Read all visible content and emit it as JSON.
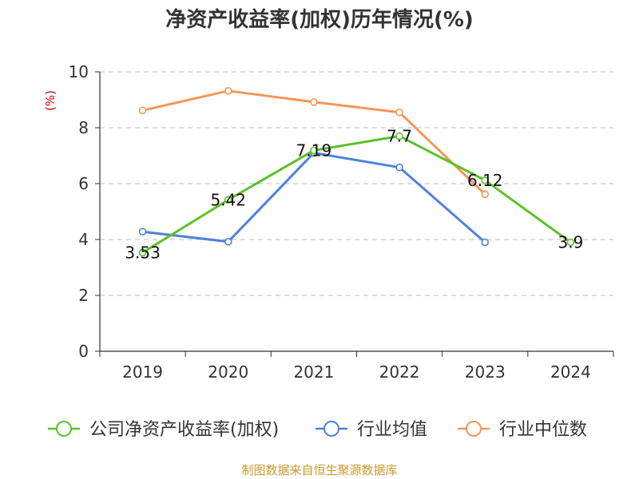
{
  "chart_data": {
    "type": "line",
    "title": "净资产收益率(加权)历年情况(%)",
    "ylabel": "(%)",
    "xlabel": "",
    "categories": [
      "2019",
      "2020",
      "2021",
      "2022",
      "2023",
      "2024"
    ],
    "ylim": [
      0,
      10
    ],
    "yticks": [
      "0",
      "2",
      "4",
      "6",
      "8",
      "10"
    ],
    "grid": true,
    "legend_position": "bottom",
    "series": [
      {
        "name": "公司净资产收益率(加权)",
        "color": "#5cc12a",
        "values": [
          3.53,
          5.42,
          7.19,
          7.7,
          6.12,
          3.9
        ],
        "labels": [
          "3.53",
          "5.42",
          "7.19",
          "7.7",
          "6.12",
          "3.9"
        ]
      },
      {
        "name": "行业均值",
        "color": "#4f81db",
        "values": [
          4.28,
          3.92,
          7.1,
          6.58,
          3.9,
          null
        ]
      },
      {
        "name": "行业中位数",
        "color": "#f79558",
        "values": [
          8.62,
          9.32,
          8.92,
          8.55,
          5.62,
          null
        ]
      }
    ],
    "source": "制图数据来自恒生聚源数据库"
  }
}
